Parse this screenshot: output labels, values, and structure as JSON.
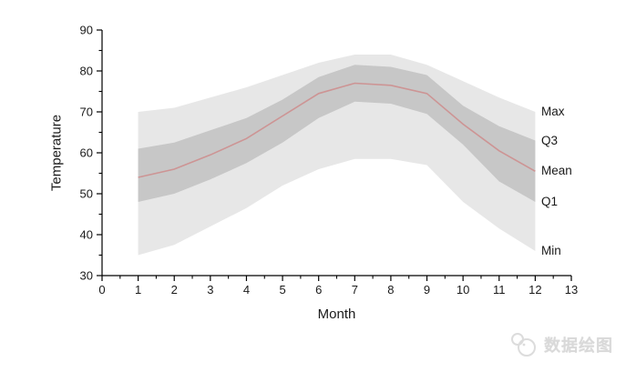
{
  "chart_data": {
    "type": "area",
    "title": "",
    "xlabel": "Month",
    "ylabel": "Temperature",
    "x": [
      1,
      2,
      3,
      4,
      5,
      6,
      7,
      8,
      9,
      10,
      11,
      12
    ],
    "series": [
      {
        "name": "Max",
        "values": [
          70,
          71,
          73.5,
          76,
          79,
          82,
          84,
          84,
          81.5,
          77.5,
          73.5,
          70
        ]
      },
      {
        "name": "Q3",
        "values": [
          61,
          62.5,
          65.5,
          68.5,
          73,
          78.5,
          81.5,
          81,
          79,
          71.5,
          66.5,
          63
        ]
      },
      {
        "name": "Mean",
        "values": [
          54,
          56,
          59.5,
          63.5,
          69,
          74.5,
          77,
          76.5,
          74.5,
          67,
          60.5,
          55.5
        ]
      },
      {
        "name": "Q1",
        "values": [
          48,
          50,
          53.5,
          57.5,
          62.5,
          68.5,
          72.5,
          72,
          69.5,
          62,
          53,
          48
        ]
      },
      {
        "name": "Min",
        "values": [
          35,
          37.5,
          42,
          46.5,
          52,
          56,
          58.5,
          58.5,
          57,
          48,
          41.5,
          36
        ]
      }
    ],
    "bands": [
      {
        "upper": "Max",
        "lower": "Min",
        "color": "#e7e7e7"
      },
      {
        "upper": "Q3",
        "lower": "Q1",
        "color": "#c7c7c7"
      }
    ],
    "line_series": "Mean",
    "line_color": "#cd9494",
    "xlim": [
      0,
      13
    ],
    "ylim": [
      30,
      90
    ],
    "x_tick_labels": [
      "0",
      "1",
      "2",
      "3",
      "4",
      "5",
      "6",
      "7",
      "8",
      "9",
      "10",
      "11",
      "12",
      "13"
    ],
    "y_tick_labels": [
      "30",
      "40",
      "50",
      "60",
      "70",
      "80",
      "90"
    ],
    "x_minor_step": 0.5,
    "y_minor_step": 5,
    "grid": false,
    "legend_position": "end-of-line-labels-right"
  },
  "watermark": {
    "text": "数据绘图"
  },
  "colors": {
    "axis": "#000000",
    "text": "#1a1a1a",
    "band_outer": "#e7e7e7",
    "band_inner": "#c7c7c7",
    "mean_line": "#cd9494",
    "watermark": "#d9d9d9"
  }
}
